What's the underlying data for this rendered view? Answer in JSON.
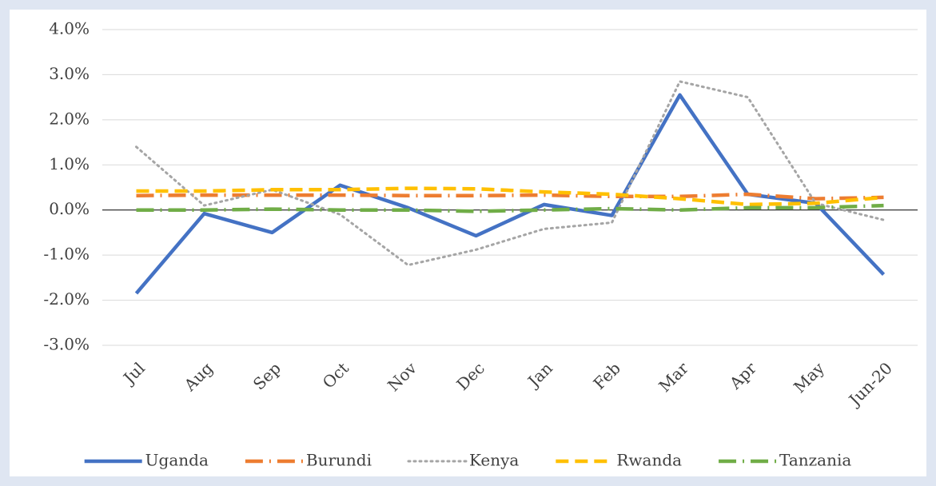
{
  "chart_data": {
    "type": "line",
    "categories": [
      "Jul",
      "Aug",
      "Sep",
      "Oct",
      "Nov",
      "Dec",
      "Jan",
      "Feb",
      "Mar",
      "Apr",
      "May",
      "Jun-20"
    ],
    "series": [
      {
        "name": "Uganda",
        "color": "#4472c4",
        "dash": "solid",
        "values": [
          -1.85,
          -0.08,
          -0.5,
          0.55,
          0.05,
          -0.57,
          0.12,
          -0.12,
          2.55,
          0.35,
          0.15,
          -1.43
        ]
      },
      {
        "name": "Burundi",
        "color": "#ed7d31",
        "dash": "dashdot",
        "values": [
          0.32,
          0.33,
          0.33,
          0.33,
          0.32,
          0.32,
          0.33,
          0.3,
          0.3,
          0.35,
          0.25,
          0.28
        ]
      },
      {
        "name": "Kenya",
        "color": "#a5a5a5",
        "dash": "dotted",
        "values": [
          1.4,
          0.1,
          0.45,
          -0.1,
          -1.22,
          -0.88,
          -0.42,
          -0.28,
          2.85,
          2.5,
          0.15,
          -0.22
        ]
      },
      {
        "name": "Rwanda",
        "color": "#ffc000",
        "dash": "dashed",
        "values": [
          0.42,
          0.42,
          0.45,
          0.45,
          0.48,
          0.47,
          0.4,
          0.35,
          0.25,
          0.12,
          0.15,
          0.28
        ]
      },
      {
        "name": "Tanzania",
        "color": "#70ad47",
        "dash": "dashdot",
        "values": [
          0.0,
          0.0,
          0.02,
          0.0,
          0.0,
          -0.03,
          0.0,
          0.03,
          0.0,
          0.05,
          0.05,
          0.1
        ]
      }
    ],
    "ylim": [
      -3,
      4
    ],
    "yticks": [
      {
        "value": -3,
        "label": "-3.0%"
      },
      {
        "value": -2,
        "label": "-2.0%"
      },
      {
        "value": -1,
        "label": "-1.0%"
      },
      {
        "value": 0,
        "label": "0.0%"
      },
      {
        "value": 1,
        "label": "1.0%"
      },
      {
        "value": 2,
        "label": "2.0%"
      },
      {
        "value": 3,
        "label": "3.0%"
      },
      {
        "value": 4,
        "label": "4.0%"
      }
    ],
    "grid": true,
    "legend": "bottom"
  }
}
